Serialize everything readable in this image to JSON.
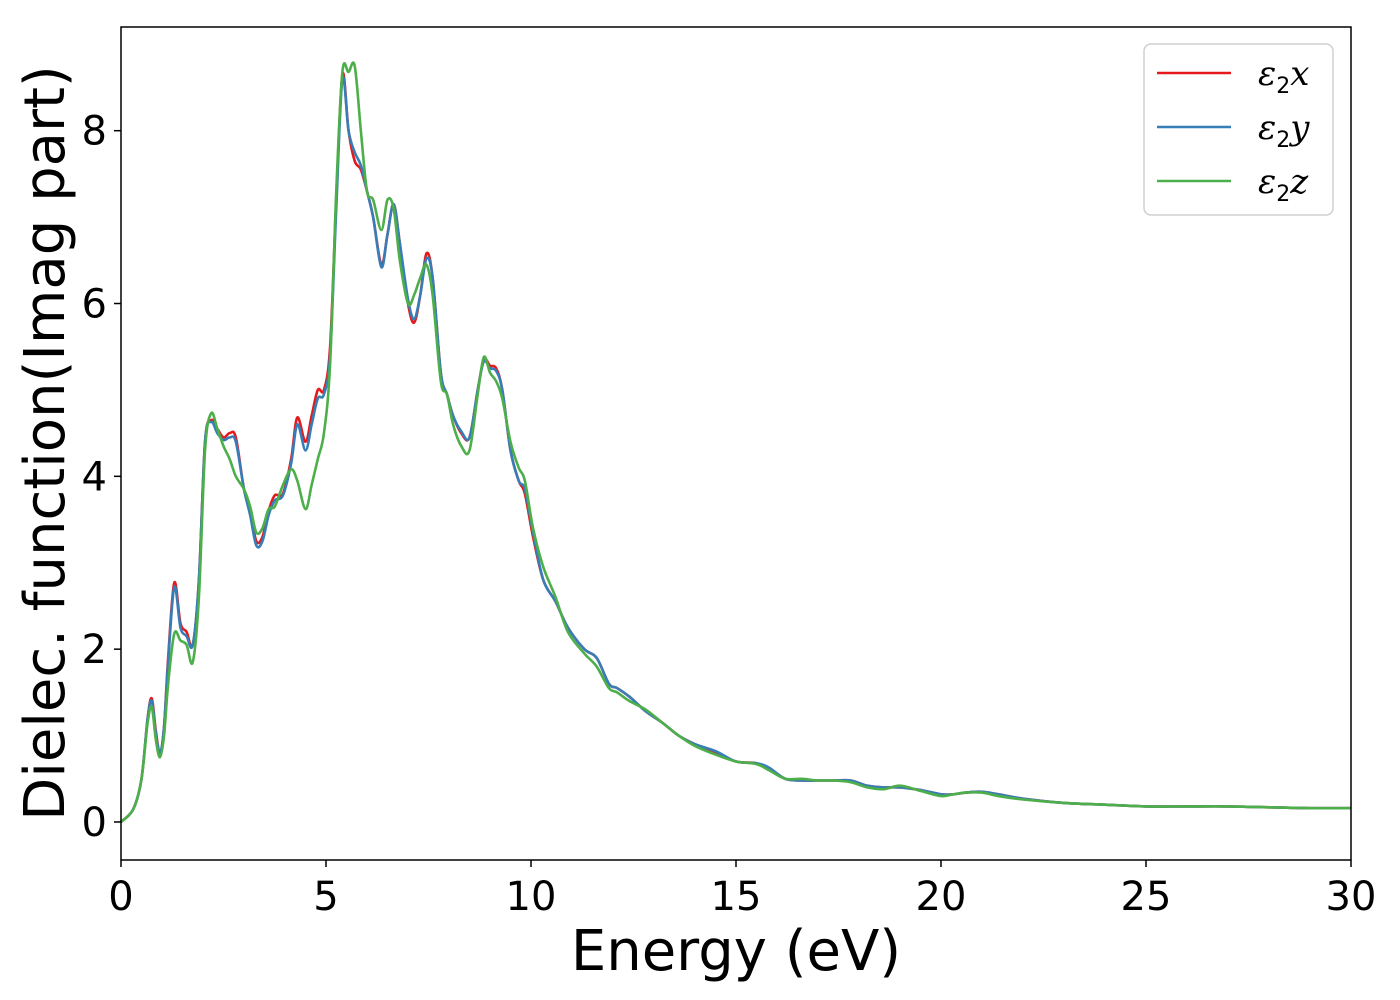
{
  "chart_data": {
    "type": "line",
    "title": "",
    "xlabel": "Energy (eV)",
    "ylabel": "Dielec. function(Imag part)",
    "xlim": [
      0,
      30
    ],
    "ylim": [
      -0.44,
      9.2
    ],
    "x_ticks": [
      0,
      5,
      10,
      15,
      20,
      25,
      30
    ],
    "y_ticks": [
      0,
      2,
      4,
      6,
      8
    ],
    "grid": false,
    "legend_position": "top-right",
    "series": [
      {
        "name": "ε₂x",
        "legend": {
          "base": "ε",
          "sub": "2",
          "suffix": "x"
        },
        "color": "#e41a1c",
        "points": [
          [
            0,
            0
          ],
          [
            0.3,
            0.15
          ],
          [
            0.5,
            0.5
          ],
          [
            0.65,
            1.2
          ],
          [
            0.75,
            1.43
          ],
          [
            0.85,
            1.05
          ],
          [
            0.95,
            0.8
          ],
          [
            1.05,
            1.1
          ],
          [
            1.15,
            1.9
          ],
          [
            1.3,
            2.77
          ],
          [
            1.45,
            2.3
          ],
          [
            1.6,
            2.2
          ],
          [
            1.75,
            2.05
          ],
          [
            1.9,
            2.8
          ],
          [
            2.05,
            4.4
          ],
          [
            2.2,
            4.65
          ],
          [
            2.35,
            4.55
          ],
          [
            2.5,
            4.45
          ],
          [
            2.65,
            4.5
          ],
          [
            2.8,
            4.45
          ],
          [
            3.0,
            3.85
          ],
          [
            3.15,
            3.6
          ],
          [
            3.3,
            3.25
          ],
          [
            3.45,
            3.3
          ],
          [
            3.6,
            3.6
          ],
          [
            3.75,
            3.78
          ],
          [
            3.95,
            3.8
          ],
          [
            4.15,
            4.2
          ],
          [
            4.3,
            4.68
          ],
          [
            4.5,
            4.4
          ],
          [
            4.65,
            4.7
          ],
          [
            4.8,
            5.0
          ],
          [
            4.95,
            5.0
          ],
          [
            5.1,
            5.5
          ],
          [
            5.25,
            7.2
          ],
          [
            5.4,
            8.65
          ],
          [
            5.55,
            8.0
          ],
          [
            5.7,
            7.65
          ],
          [
            5.85,
            7.55
          ],
          [
            6.0,
            7.3
          ],
          [
            6.15,
            7.0
          ],
          [
            6.35,
            6.45
          ],
          [
            6.5,
            6.8
          ],
          [
            6.65,
            7.15
          ],
          [
            6.8,
            6.7
          ],
          [
            7.0,
            6.0
          ],
          [
            7.15,
            5.78
          ],
          [
            7.3,
            6.1
          ],
          [
            7.45,
            6.58
          ],
          [
            7.6,
            6.3
          ],
          [
            7.8,
            5.2
          ],
          [
            7.95,
            4.95
          ],
          [
            8.1,
            4.7
          ],
          [
            8.3,
            4.5
          ],
          [
            8.5,
            4.45
          ],
          [
            8.7,
            5.0
          ],
          [
            8.85,
            5.35
          ],
          [
            9.0,
            5.28
          ],
          [
            9.15,
            5.25
          ],
          [
            9.3,
            5.0
          ],
          [
            9.5,
            4.3
          ],
          [
            9.7,
            3.95
          ],
          [
            9.85,
            3.8
          ],
          [
            10.05,
            3.3
          ],
          [
            10.3,
            2.8
          ],
          [
            10.6,
            2.55
          ],
          [
            10.9,
            2.25
          ],
          [
            11.3,
            2.0
          ],
          [
            11.6,
            1.9
          ],
          [
            11.9,
            1.6
          ],
          [
            12.1,
            1.55
          ],
          [
            12.4,
            1.45
          ],
          [
            12.8,
            1.28
          ],
          [
            13.2,
            1.15
          ],
          [
            13.6,
            1.0
          ],
          [
            14.0,
            0.9
          ],
          [
            14.5,
            0.8
          ],
          [
            15.0,
            0.7
          ],
          [
            15.5,
            0.68
          ],
          [
            15.8,
            0.62
          ],
          [
            16.2,
            0.5
          ],
          [
            16.6,
            0.48
          ],
          [
            17.0,
            0.48
          ],
          [
            17.4,
            0.48
          ],
          [
            17.8,
            0.48
          ],
          [
            18.2,
            0.42
          ],
          [
            18.6,
            0.4
          ],
          [
            19.0,
            0.4
          ],
          [
            19.5,
            0.37
          ],
          [
            20.0,
            0.32
          ],
          [
            20.3,
            0.32
          ],
          [
            20.6,
            0.34
          ],
          [
            21.0,
            0.35
          ],
          [
            21.4,
            0.32
          ],
          [
            22.0,
            0.27
          ],
          [
            23.0,
            0.22
          ],
          [
            24.0,
            0.2
          ],
          [
            25.0,
            0.18
          ],
          [
            26.0,
            0.18
          ],
          [
            27.0,
            0.18
          ],
          [
            28.0,
            0.17
          ],
          [
            29.0,
            0.16
          ],
          [
            30.0,
            0.16
          ]
        ]
      },
      {
        "name": "ε₂y",
        "legend": {
          "base": "ε",
          "sub": "2",
          "suffix": "y"
        },
        "color": "#377eb8",
        "points": [
          [
            0,
            0
          ],
          [
            0.3,
            0.15
          ],
          [
            0.5,
            0.5
          ],
          [
            0.65,
            1.2
          ],
          [
            0.75,
            1.4
          ],
          [
            0.85,
            1.02
          ],
          [
            0.95,
            0.8
          ],
          [
            1.05,
            1.1
          ],
          [
            1.15,
            1.85
          ],
          [
            1.3,
            2.72
          ],
          [
            1.45,
            2.25
          ],
          [
            1.6,
            2.15
          ],
          [
            1.75,
            2.05
          ],
          [
            1.9,
            2.8
          ],
          [
            2.05,
            4.4
          ],
          [
            2.2,
            4.63
          ],
          [
            2.35,
            4.5
          ],
          [
            2.5,
            4.42
          ],
          [
            2.65,
            4.45
          ],
          [
            2.8,
            4.4
          ],
          [
            3.0,
            3.85
          ],
          [
            3.15,
            3.55
          ],
          [
            3.3,
            3.2
          ],
          [
            3.45,
            3.25
          ],
          [
            3.6,
            3.55
          ],
          [
            3.75,
            3.72
          ],
          [
            3.95,
            3.78
          ],
          [
            4.15,
            4.15
          ],
          [
            4.3,
            4.6
          ],
          [
            4.5,
            4.3
          ],
          [
            4.65,
            4.6
          ],
          [
            4.8,
            4.9
          ],
          [
            4.95,
            4.95
          ],
          [
            5.1,
            5.4
          ],
          [
            5.25,
            7.1
          ],
          [
            5.4,
            8.6
          ],
          [
            5.55,
            8.0
          ],
          [
            5.7,
            7.75
          ],
          [
            5.85,
            7.6
          ],
          [
            6.0,
            7.3
          ],
          [
            6.15,
            7.0
          ],
          [
            6.35,
            6.42
          ],
          [
            6.5,
            6.8
          ],
          [
            6.65,
            7.15
          ],
          [
            6.8,
            6.7
          ],
          [
            7.0,
            6.05
          ],
          [
            7.15,
            5.82
          ],
          [
            7.3,
            6.1
          ],
          [
            7.45,
            6.52
          ],
          [
            7.6,
            6.3
          ],
          [
            7.8,
            5.2
          ],
          [
            7.95,
            4.95
          ],
          [
            8.1,
            4.7
          ],
          [
            8.3,
            4.52
          ],
          [
            8.5,
            4.45
          ],
          [
            8.7,
            5.0
          ],
          [
            8.85,
            5.33
          ],
          [
            9.0,
            5.25
          ],
          [
            9.15,
            5.22
          ],
          [
            9.3,
            5.0
          ],
          [
            9.5,
            4.3
          ],
          [
            9.7,
            3.95
          ],
          [
            9.85,
            3.85
          ],
          [
            10.05,
            3.35
          ],
          [
            10.3,
            2.8
          ],
          [
            10.6,
            2.55
          ],
          [
            10.9,
            2.25
          ],
          [
            11.3,
            2.0
          ],
          [
            11.6,
            1.9
          ],
          [
            11.9,
            1.6
          ],
          [
            12.1,
            1.55
          ],
          [
            12.4,
            1.45
          ],
          [
            12.8,
            1.28
          ],
          [
            13.2,
            1.15
          ],
          [
            13.6,
            1.0
          ],
          [
            14.0,
            0.9
          ],
          [
            14.5,
            0.82
          ],
          [
            15.0,
            0.7
          ],
          [
            15.5,
            0.68
          ],
          [
            15.8,
            0.63
          ],
          [
            16.2,
            0.5
          ],
          [
            16.6,
            0.48
          ],
          [
            17.0,
            0.48
          ],
          [
            17.4,
            0.48
          ],
          [
            17.8,
            0.48
          ],
          [
            18.2,
            0.42
          ],
          [
            18.6,
            0.4
          ],
          [
            19.0,
            0.4
          ],
          [
            19.5,
            0.37
          ],
          [
            20.0,
            0.32
          ],
          [
            20.3,
            0.32
          ],
          [
            20.6,
            0.34
          ],
          [
            21.0,
            0.35
          ],
          [
            21.4,
            0.32
          ],
          [
            22.0,
            0.27
          ],
          [
            23.0,
            0.22
          ],
          [
            24.0,
            0.2
          ],
          [
            25.0,
            0.18
          ],
          [
            26.0,
            0.18
          ],
          [
            27.0,
            0.18
          ],
          [
            28.0,
            0.17
          ],
          [
            29.0,
            0.16
          ],
          [
            30.0,
            0.16
          ]
        ]
      },
      {
        "name": "ε₂z",
        "legend": {
          "base": "ε",
          "sub": "2",
          "suffix": "z"
        },
        "color": "#4daf4a",
        "points": [
          [
            0,
            0
          ],
          [
            0.3,
            0.15
          ],
          [
            0.5,
            0.5
          ],
          [
            0.65,
            1.15
          ],
          [
            0.75,
            1.33
          ],
          [
            0.85,
            0.95
          ],
          [
            0.95,
            0.75
          ],
          [
            1.05,
            1.0
          ],
          [
            1.15,
            1.6
          ],
          [
            1.3,
            2.18
          ],
          [
            1.45,
            2.1
          ],
          [
            1.6,
            2.05
          ],
          [
            1.75,
            1.85
          ],
          [
            1.9,
            2.6
          ],
          [
            2.05,
            4.3
          ],
          [
            2.2,
            4.73
          ],
          [
            2.35,
            4.55
          ],
          [
            2.5,
            4.35
          ],
          [
            2.65,
            4.2
          ],
          [
            2.8,
            4.0
          ],
          [
            3.0,
            3.85
          ],
          [
            3.15,
            3.65
          ],
          [
            3.3,
            3.35
          ],
          [
            3.45,
            3.4
          ],
          [
            3.6,
            3.62
          ],
          [
            3.75,
            3.65
          ],
          [
            3.95,
            3.9
          ],
          [
            4.15,
            4.08
          ],
          [
            4.3,
            3.95
          ],
          [
            4.5,
            3.62
          ],
          [
            4.65,
            3.9
          ],
          [
            4.8,
            4.2
          ],
          [
            4.95,
            4.5
          ],
          [
            5.1,
            5.3
          ],
          [
            5.25,
            7.3
          ],
          [
            5.4,
            8.68
          ],
          [
            5.55,
            8.68
          ],
          [
            5.7,
            8.75
          ],
          [
            5.85,
            8.0
          ],
          [
            6.0,
            7.3
          ],
          [
            6.15,
            7.2
          ],
          [
            6.35,
            6.85
          ],
          [
            6.5,
            7.2
          ],
          [
            6.65,
            7.1
          ],
          [
            6.8,
            6.5
          ],
          [
            7.0,
            6.0
          ],
          [
            7.15,
            6.1
          ],
          [
            7.3,
            6.3
          ],
          [
            7.45,
            6.45
          ],
          [
            7.6,
            6.1
          ],
          [
            7.8,
            5.1
          ],
          [
            7.95,
            4.95
          ],
          [
            8.1,
            4.6
          ],
          [
            8.3,
            4.35
          ],
          [
            8.5,
            4.3
          ],
          [
            8.7,
            4.95
          ],
          [
            8.85,
            5.38
          ],
          [
            9.0,
            5.2
          ],
          [
            9.15,
            5.1
          ],
          [
            9.3,
            4.9
          ],
          [
            9.5,
            4.4
          ],
          [
            9.7,
            4.1
          ],
          [
            9.85,
            3.95
          ],
          [
            10.05,
            3.4
          ],
          [
            10.3,
            2.95
          ],
          [
            10.6,
            2.6
          ],
          [
            10.9,
            2.2
          ],
          [
            11.3,
            1.95
          ],
          [
            11.6,
            1.8
          ],
          [
            11.9,
            1.55
          ],
          [
            12.1,
            1.5
          ],
          [
            12.4,
            1.4
          ],
          [
            12.8,
            1.3
          ],
          [
            13.2,
            1.15
          ],
          [
            13.6,
            1.0
          ],
          [
            14.0,
            0.88
          ],
          [
            14.5,
            0.78
          ],
          [
            15.0,
            0.7
          ],
          [
            15.5,
            0.67
          ],
          [
            15.8,
            0.6
          ],
          [
            16.2,
            0.5
          ],
          [
            16.6,
            0.5
          ],
          [
            17.0,
            0.48
          ],
          [
            17.4,
            0.48
          ],
          [
            17.8,
            0.46
          ],
          [
            18.2,
            0.4
          ],
          [
            18.6,
            0.38
          ],
          [
            19.0,
            0.42
          ],
          [
            19.5,
            0.36
          ],
          [
            20.0,
            0.3
          ],
          [
            20.3,
            0.32
          ],
          [
            20.6,
            0.34
          ],
          [
            21.0,
            0.34
          ],
          [
            21.4,
            0.3
          ],
          [
            22.0,
            0.26
          ],
          [
            23.0,
            0.22
          ],
          [
            24.0,
            0.2
          ],
          [
            25.0,
            0.18
          ],
          [
            26.0,
            0.18
          ],
          [
            27.0,
            0.18
          ],
          [
            28.0,
            0.17
          ],
          [
            29.0,
            0.16
          ],
          [
            30.0,
            0.16
          ]
        ]
      }
    ]
  }
}
